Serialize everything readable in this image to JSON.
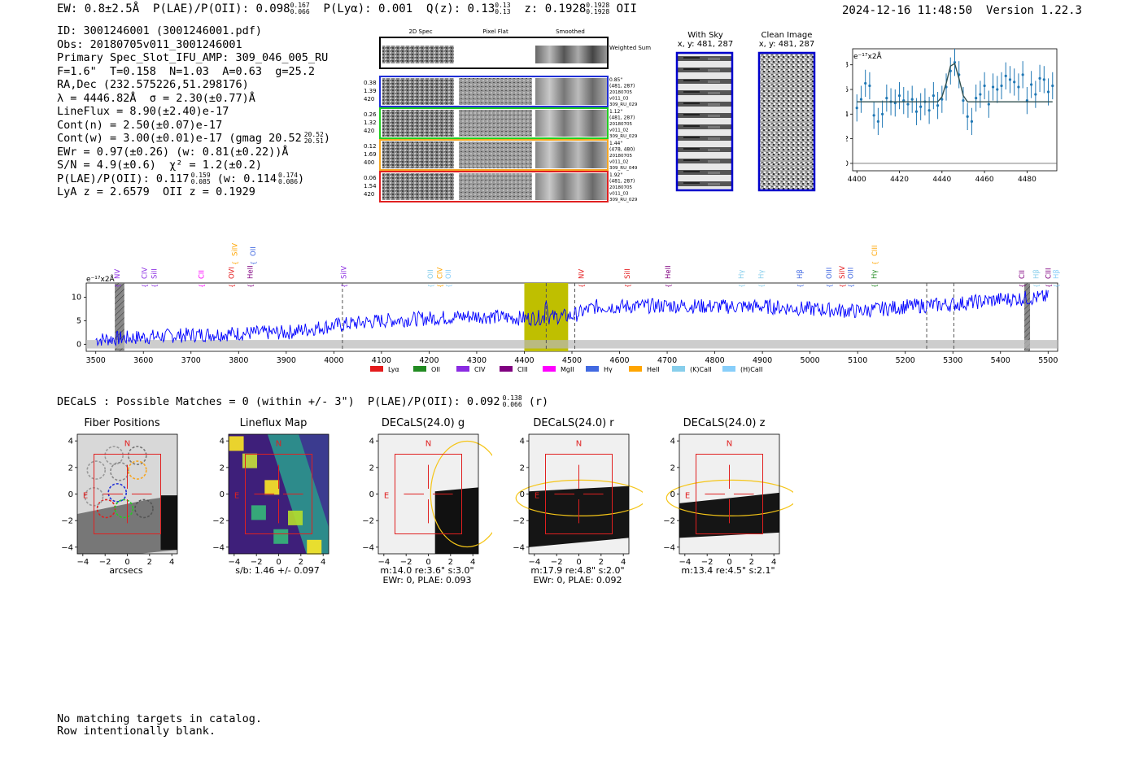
{
  "header": {
    "ew": "EW: 0.8±2.5Å",
    "plae": "P(LAE)/P(OII): 0.098",
    "plae_sup": "0.167",
    "plae_sub": "0.066",
    "plya": "P(Lyα): 0.001",
    "qz": "Q(z): 0.13",
    "qz_sup": "0.13",
    "qz_sub": "0.13",
    "z": "z: 0.1928",
    "z_sup": "0.1928",
    "z_sub": "0.1928",
    "line": "OII",
    "timestamp": "2024-12-16 11:48:50",
    "version": "Version 1.22.3"
  },
  "info": {
    "id": "ID: 3001246001 (3001246001.pdf)",
    "obs": "Obs: 20180705v011_3001246001",
    "primary": "Primary Spec_Slot_IFU_AMP: 309_046_005_RU",
    "fit": "F=1.6\"  T=0.158  N=1.03  A=0.63  g=25.2",
    "radec": "RA,Dec (232.575226,51.298176)",
    "lambda": "λ = 4446.82Å  σ = 2.30(±0.77)Å",
    "lineflux": "LineFlux = 8.90(±2.40)e-17",
    "contn": "Cont(n) = 2.50(±0.07)e-17",
    "contw": "Cont(w) = 3.00(±0.01)e-17 (gmag 20.52",
    "contw_sup": "20.52",
    "contw_sub": "20.51",
    "ewr": "EWr = 0.97(±0.26) (w: 0.81(±0.22))Å",
    "sn": "S/N = 4.9(±0.6)  χ² = 1.2(±0.2)",
    "plae2": "P(LAE)/P(OII): 0.117",
    "plae2_sup": "0.159",
    "plae2_sub": "0.085",
    "plae2_w": "(w: 0.114",
    "plae2_w_sup": "0.174",
    "plae2_w_sub": "0.086",
    "lyaz": "LyA z = 2.6579  OII z = 0.1929"
  },
  "spec2d": {
    "col_titles": [
      "2D Spec",
      "Pixel Flat",
      "Smoothed"
    ],
    "weighted_label": "Weighted Sum",
    "rows": [
      {
        "stats": [
          "0.38",
          "1.39",
          "420"
        ],
        "info": [
          "0.85\"",
          "(481, 287)",
          "20180705",
          "v011_03",
          "309_RU_029"
        ],
        "color": "#1f2fd6"
      },
      {
        "stats": [
          "0.26",
          "1.32",
          "420"
        ],
        "info": [
          "1.12\"",
          "(481, 287)",
          "20180705",
          "v011_02",
          "309_RU_029"
        ],
        "color": "#22cc22"
      },
      {
        "stats": [
          "0.12",
          "1.69",
          "400"
        ],
        "info": [
          "1.44\"",
          "(478, 480)",
          "20180705",
          "v011_02",
          "309_RU_049"
        ],
        "color": "#f5a623"
      },
      {
        "stats": [
          "0.06",
          "1.54",
          "420"
        ],
        "info": [
          "1.92\"",
          "(481, 287)",
          "20180705",
          "v011_03",
          "309_RU_029"
        ],
        "color": "#e02020"
      }
    ]
  },
  "sky": {
    "with_sky": "With Sky",
    "with_sky_xy": "x, y: 481, 287",
    "clean": "Clean Image",
    "clean_xy": "x, y: 481, 287"
  },
  "zoom_chart": {
    "unit": "e⁻¹⁷x2Å",
    "xticks": [
      "4400",
      "4420",
      "4440",
      "4460",
      "4480"
    ],
    "yticks": [
      "0",
      "2",
      "4",
      "6",
      "8"
    ]
  },
  "chart_data": [
    {
      "type": "line",
      "title": "",
      "ylabel": "e⁻¹⁷x2Å",
      "xlim": [
        4398,
        4494
      ],
      "ylim": [
        -0.6,
        9.3
      ],
      "x": [
        4400,
        4402,
        4404,
        4406,
        4408,
        4410,
        4412,
        4414,
        4416,
        4418,
        4420,
        4422,
        4424,
        4426,
        4428,
        4430,
        4432,
        4434,
        4436,
        4438,
        4440,
        4442,
        4444,
        4446,
        4448,
        4450,
        4452,
        4454,
        4456,
        4458,
        4460,
        4462,
        4464,
        4466,
        4468,
        4470,
        4472,
        4474,
        4476,
        4478,
        4480,
        4482,
        4484,
        4486,
        4488,
        4490,
        4492
      ],
      "series": [
        {
          "name": "data",
          "values": [
            4.5,
            5.2,
            6.5,
            6.3,
            3.9,
            3.4,
            4.0,
            5.3,
            5.0,
            4.9,
            5.5,
            5.1,
            4.8,
            5.2,
            4.2,
            4.6,
            5.0,
            4.3,
            5.5,
            4.7,
            5.2,
            6.2,
            7.5,
            8.2,
            7.2,
            5.1,
            3.8,
            3.4,
            5.3,
            5.6,
            6.3,
            4.8,
            6.2,
            6.0,
            6.3,
            7.1,
            6.8,
            6.6,
            6.2,
            7.2,
            5.1,
            6.4,
            5.6,
            6.9,
            6.8,
            5.8,
            6.3
          ]
        },
        {
          "name": "fit",
          "values": [
            5.0,
            5.0,
            5.0,
            5.0,
            5.0,
            5.0,
            5.0,
            5.0,
            5.0,
            5.0,
            5.0,
            5.0,
            5.0,
            5.0,
            5.0,
            5.0,
            5.0,
            5.0,
            5.0,
            5.0,
            5.4,
            6.5,
            7.9,
            8.1,
            6.9,
            5.5,
            5.0,
            5.0,
            5.0,
            5.0,
            5.0,
            5.0,
            5.0,
            5.0,
            5.0,
            5.0,
            5.0,
            5.0,
            5.0,
            5.0,
            5.0,
            5.0,
            5.0,
            5.0,
            5.0,
            5.0,
            5.0
          ]
        }
      ]
    },
    {
      "type": "line",
      "title": "",
      "ylabel": "e⁻¹⁷x2Å",
      "xlim": [
        3480,
        5520
      ],
      "ylim": [
        -1.5,
        13
      ],
      "xticks": [
        3500,
        3600,
        3700,
        3800,
        3900,
        4000,
        4100,
        4200,
        4300,
        4400,
        4500,
        4600,
        4700,
        4800,
        4900,
        5000,
        5100,
        5200,
        5300,
        5400,
        5500
      ],
      "yticks": [
        0,
        5,
        10
      ],
      "series": [
        {
          "name": "spectrum",
          "color": "#0000ff",
          "trend_x": [
            3500,
            3600,
            3700,
            3800,
            3900,
            4000,
            4100,
            4200,
            4300,
            4400,
            4500,
            4550,
            4600,
            4700,
            4800,
            4900,
            5000,
            5100,
            5200,
            5300,
            5400,
            5500
          ],
          "trend_y": [
            1.0,
            1.5,
            2.0,
            2.3,
            2.5,
            4.0,
            5.0,
            5.5,
            6.0,
            5.5,
            6.0,
            8.0,
            8.0,
            8.2,
            8.0,
            8.0,
            7.5,
            7.0,
            8.0,
            8.5,
            9.5,
            10.0
          ]
        }
      ],
      "highlight_band": [
        4400,
        4492
      ],
      "dashed_lines": [
        4018,
        4446,
        4506,
        5245,
        5302
      ],
      "legend": [
        {
          "label": "Lyα",
          "color": "#e41a1c"
        },
        {
          "label": "OII",
          "color": "#228b22"
        },
        {
          "label": "CIV",
          "color": "#8a2be2"
        },
        {
          "label": "CIII",
          "color": "#800080"
        },
        {
          "label": "MgII",
          "color": "#ff00ff"
        },
        {
          "label": "Hγ",
          "color": "#4169e1"
        },
        {
          "label": "HeII",
          "color": "#ffa500"
        },
        {
          "label": "(K)CaII",
          "color": "#87ceeb"
        },
        {
          "label": "(H)CaII",
          "color": "#87cefa"
        }
      ],
      "line_labels": [
        {
          "label": "NV",
          "x": 3545,
          "color": "#8a2be2"
        },
        {
          "label": "CIV",
          "x": 3602,
          "color": "#8a2be2"
        },
        {
          "label": "SiII",
          "x": 3623,
          "color": "#8a2be2"
        },
        {
          "label": "CII",
          "x": 3722,
          "color": "#ff00ff"
        },
        {
          "label": "OVI",
          "x": 3785,
          "color": "#e41a1c"
        },
        {
          "label": "SiIV",
          "x": 3792,
          "color": "#ffa500",
          "upper": true
        },
        {
          "label": "HeII",
          "x": 3824,
          "color": "#800080"
        },
        {
          "label": "OII",
          "x": 3830,
          "color": "#4169e1",
          "upper": true
        },
        {
          "label": "SiIV",
          "x": 4021,
          "color": "#8a2be2"
        },
        {
          "label": "OII",
          "x": 4203,
          "color": "#87ceeb"
        },
        {
          "label": "CIV",
          "x": 4222,
          "color": "#ffa500"
        },
        {
          "label": "OII",
          "x": 4240,
          "color": "#87cefa"
        },
        {
          "label": "NV",
          "x": 4520,
          "color": "#e41a1c"
        },
        {
          "label": "SiII",
          "x": 4616,
          "color": "#e41a1c"
        },
        {
          "label": "HeII",
          "x": 4702,
          "color": "#800080"
        },
        {
          "label": "Hγ",
          "x": 4855,
          "color": "#87ceeb"
        },
        {
          "label": "Hγ",
          "x": 4897,
          "color": "#87ceeb"
        },
        {
          "label": "Hβ",
          "x": 4978,
          "color": "#4169e1"
        },
        {
          "label": "OIII",
          "x": 5040,
          "color": "#4169e1"
        },
        {
          "label": "SiIV",
          "x": 5067,
          "color": "#e41a1c"
        },
        {
          "label": "OIII",
          "x": 5085,
          "color": "#4169e1"
        },
        {
          "label": "Hγ",
          "x": 5135,
          "color": "#228b22"
        },
        {
          "label": "CIII",
          "x": 5136,
          "color": "#ffa500",
          "upper": true
        },
        {
          "label": "CII",
          "x": 5445,
          "color": "#800080"
        },
        {
          "label": "Hβ",
          "x": 5475,
          "color": "#87ceeb"
        },
        {
          "label": "CIII",
          "x": 5500,
          "color": "#800080"
        },
        {
          "label": "Hβ",
          "x": 5517,
          "color": "#87cefa"
        }
      ]
    }
  ],
  "decals": {
    "header": "DECaLS : Possible Matches = 0 (within +/- 3\")  P(LAE)/P(OII): 0.092",
    "header_sup": "0.138",
    "header_sub": "0.066",
    "header_band": "(r)",
    "axis_ticks_x": [
      "−4",
      "−2",
      "0",
      "2",
      "4"
    ],
    "axis_ticks_y": [
      "4",
      "2",
      "0",
      "−2",
      "−4"
    ],
    "north": "N",
    "east": "E",
    "panels": [
      {
        "title": "Fiber Positions",
        "caption1": "arcsecs",
        "caption2": ""
      },
      {
        "title": "Lineflux Map",
        "caption1": "s/b: 1.46 +/- 0.097",
        "caption2": ""
      },
      {
        "title": "DECaLS(24.0) g",
        "caption1": "m:14.0  re:3.6\"  s:3.0\"",
        "caption2": "EWr: 0, PLAE: 0.093"
      },
      {
        "title": "DECaLS(24.0) r",
        "caption1": "m:17.9  re:4.8\"  s:2.0\"",
        "caption2": "EWr: 0, PLAE: 0.092"
      },
      {
        "title": "DECaLS(24.0) z",
        "caption1": "m:13.4  re:4.5\"  s:2.1\"",
        "caption2": ""
      }
    ]
  },
  "footer": {
    "line1": "No matching targets in catalog.",
    "line2": "Row intentionally blank."
  }
}
